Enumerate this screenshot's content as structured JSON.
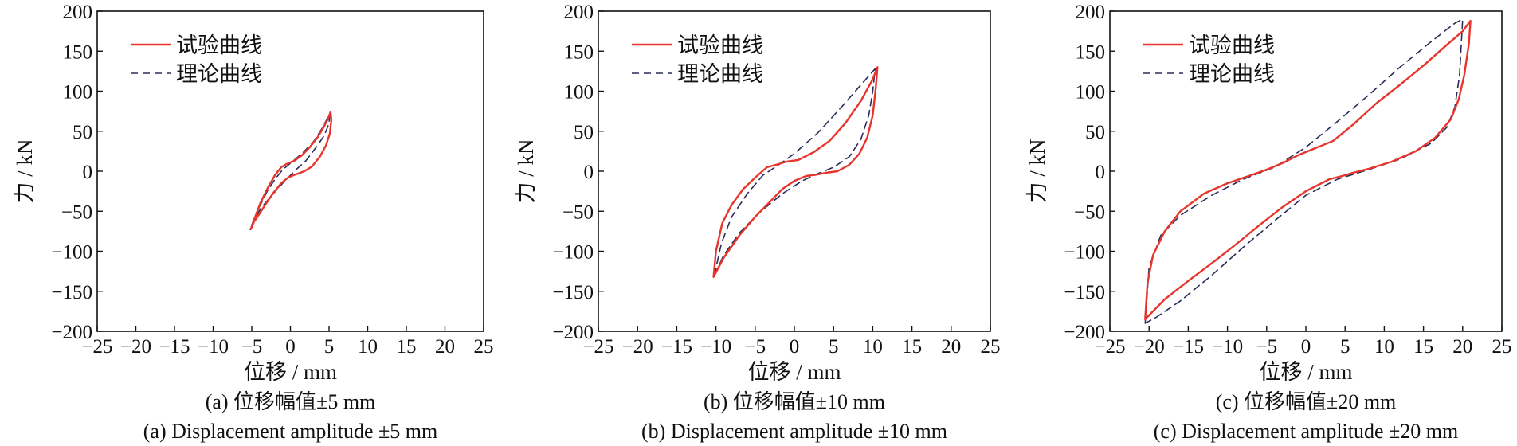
{
  "colors": {
    "experimental": "#e8352c",
    "theoretical": "#2a2d5a",
    "axis": "#111111"
  },
  "legend": {
    "experimental": "试验曲线",
    "theoretical": "理论曲线",
    "placement": "top-left"
  },
  "chart_data": [
    {
      "type": "line",
      "xlabel": "位移 / mm",
      "ylabel": "力 / kN",
      "xlim": [
        -25,
        25
      ],
      "ylim": [
        -200,
        200
      ],
      "xticks": [
        -25,
        -20,
        -15,
        -10,
        -5,
        0,
        5,
        10,
        15,
        20,
        25
      ],
      "yticks": [
        -200,
        -150,
        -100,
        -50,
        0,
        50,
        100,
        150,
        200
      ],
      "xtick_labels": [
        "−25",
        "−20",
        "−15",
        "−10",
        "−5",
        "0",
        "5",
        "10",
        "15",
        "20",
        "25"
      ],
      "ytick_labels": [
        "−200",
        "−150",
        "−100",
        "−50",
        "0",
        "50",
        "100",
        "150",
        "200"
      ],
      "grid": false,
      "caption_cn": "(a) 位移幅值±5 mm",
      "caption_en": "(a) Displacement amplitude ±5 mm",
      "series": [
        {
          "name": "试验曲线",
          "style": "solid",
          "x": [
            -5.1,
            -4.6,
            -3.9,
            -3.0,
            -2.0,
            -1.2,
            -0.5,
            0.5,
            1.5,
            2.5,
            3.5,
            4.3,
            4.9,
            5.2,
            5.3,
            5.1,
            4.6,
            3.8,
            2.8,
            1.8,
            1.0,
            0.4,
            -0.3,
            -1.2,
            -2.2,
            -3.2,
            -4.0,
            -4.7,
            -5.1
          ],
          "y": [
            -72,
            -58,
            -40,
            -22,
            -5,
            5,
            9,
            13,
            20,
            30,
            42,
            55,
            66,
            74,
            64,
            47,
            32,
            18,
            6,
            0,
            -3,
            -5,
            -8,
            -15,
            -27,
            -41,
            -53,
            -63,
            -72
          ]
        },
        {
          "name": "理论曲线",
          "style": "dashed",
          "x": [
            -5.2,
            -4.2,
            -3.0,
            -2.0,
            -1.0,
            0.0,
            1.5,
            3.0,
            4.2,
            5.1,
            5.0,
            4.4,
            3.5,
            2.0,
            0.5,
            -1.0,
            -2.5,
            -3.8,
            -4.8,
            -5.2
          ],
          "y": [
            -73,
            -48,
            -25,
            -10,
            2,
            10,
            22,
            37,
            55,
            72,
            60,
            45,
            32,
            13,
            0,
            -15,
            -31,
            -46,
            -62,
            -73
          ]
        }
      ]
    },
    {
      "type": "line",
      "xlabel": "位移 / mm",
      "ylabel": "力 / kN",
      "xlim": [
        -25,
        25
      ],
      "ylim": [
        -200,
        200
      ],
      "xticks": [
        -25,
        -20,
        -15,
        -10,
        -5,
        0,
        5,
        10,
        15,
        20,
        25
      ],
      "yticks": [
        -200,
        -150,
        -100,
        -50,
        0,
        50,
        100,
        150,
        200
      ],
      "xtick_labels": [
        "−25",
        "−20",
        "−15",
        "−10",
        "−5",
        "0",
        "5",
        "10",
        "15",
        "20",
        "25"
      ],
      "ytick_labels": [
        "−200",
        "−150",
        "−100",
        "−50",
        "0",
        "50",
        "100",
        "150",
        "200"
      ],
      "grid": false,
      "caption_cn": "(b) 位移幅值±10 mm",
      "caption_en": "(b) Displacement amplitude ±10 mm",
      "series": [
        {
          "name": "试验曲线",
          "style": "solid",
          "x": [
            -10.3,
            -10.0,
            -9.2,
            -8.0,
            -6.5,
            -5.0,
            -3.5,
            -2.0,
            -1.0,
            0.5,
            2.5,
            4.5,
            6.5,
            8.5,
            10.0,
            10.6,
            10.4,
            10.0,
            9.3,
            8.3,
            7.0,
            5.5,
            4.0,
            3.0,
            1.5,
            0.0,
            -1.5,
            -3.0,
            -5.0,
            -7.0,
            -9.0,
            -10.3
          ],
          "y": [
            -132,
            -100,
            -65,
            -42,
            -22,
            -8,
            5,
            9,
            12,
            14,
            24,
            38,
            60,
            88,
            115,
            130,
            105,
            70,
            42,
            22,
            8,
            0,
            -2,
            -4,
            -6,
            -12,
            -22,
            -37,
            -57,
            -80,
            -108,
            -132
          ]
        },
        {
          "name": "理论曲线",
          "style": "dashed",
          "x": [
            -10.2,
            -9.3,
            -8.0,
            -6.0,
            -4.0,
            -2.0,
            0.0,
            3.0,
            6.0,
            8.5,
            10.3,
            10.0,
            9.5,
            8.5,
            7.0,
            5.0,
            3.0,
            1.0,
            -1.5,
            -4.5,
            -7.0,
            -9.0,
            -10.2
          ],
          "y": [
            -130,
            -90,
            -57,
            -28,
            -5,
            8,
            22,
            48,
            80,
            108,
            128,
            100,
            70,
            40,
            18,
            5,
            -3,
            -12,
            -28,
            -52,
            -77,
            -105,
            -130
          ]
        }
      ]
    },
    {
      "type": "line",
      "xlabel": "位移 / mm",
      "ylabel": "力 / kN",
      "xlim": [
        -25,
        25
      ],
      "ylim": [
        -200,
        200
      ],
      "xticks": [
        -25,
        -20,
        -15,
        -10,
        -5,
        0,
        5,
        10,
        15,
        20,
        25
      ],
      "yticks": [
        -200,
        -150,
        -100,
        -50,
        0,
        50,
        100,
        150,
        200
      ],
      "xtick_labels": [
        "−25",
        "−20",
        "−15",
        "−10",
        "−5",
        "0",
        "5",
        "10",
        "15",
        "20",
        "25"
      ],
      "ytick_labels": [
        "−200",
        "−150",
        "−100",
        "−50",
        "0",
        "50",
        "100",
        "150",
        "200"
      ],
      "grid": false,
      "caption_cn": "(c) 位移幅值±20 mm",
      "caption_en": "(c) Displacement amplitude ±20 mm",
      "series": [
        {
          "name": "试验曲线",
          "style": "solid",
          "x": [
            -20.5,
            -20.2,
            -19.5,
            -18.0,
            -16.0,
            -13.0,
            -10.0,
            -7.0,
            -5.0,
            -3.0,
            -1.0,
            1.0,
            3.5,
            6.0,
            9.0,
            12.0,
            15.0,
            18.0,
            20.0,
            21.0,
            20.8,
            20.2,
            19.5,
            18.5,
            16.5,
            14.0,
            11.0,
            8.0,
            6.0,
            5.0,
            3.0,
            0.0,
            -3.0,
            -6.0,
            -9.0,
            -12.0,
            -15.0,
            -18.0,
            -20.5
          ],
          "y": [
            -185,
            -140,
            -105,
            -75,
            -50,
            -28,
            -15,
            -5,
            2,
            10,
            20,
            28,
            38,
            58,
            85,
            108,
            132,
            158,
            175,
            188,
            160,
            120,
            90,
            65,
            42,
            25,
            12,
            3,
            -2,
            -5,
            -10,
            -25,
            -45,
            -68,
            -92,
            -115,
            -137,
            -160,
            -185
          ]
        },
        {
          "name": "理论曲线",
          "style": "dashed",
          "x": [
            -20.5,
            -20.0,
            -18.5,
            -16.0,
            -12.0,
            -8.0,
            -4.0,
            0.0,
            4.0,
            8.0,
            12.0,
            16.0,
            19.0,
            20.0,
            19.6,
            19.0,
            18.0,
            16.0,
            12.0,
            8.0,
            4.0,
            0.0,
            -4.0,
            -8.0,
            -12.0,
            -16.0,
            -19.0,
            -20.5
          ],
          "y": [
            -190,
            -120,
            -80,
            -55,
            -30,
            -10,
            5,
            30,
            62,
            95,
            130,
            162,
            185,
            190,
            120,
            80,
            55,
            35,
            15,
            2,
            -10,
            -30,
            -62,
            -95,
            -130,
            -162,
            -182,
            -190
          ]
        }
      ]
    }
  ]
}
